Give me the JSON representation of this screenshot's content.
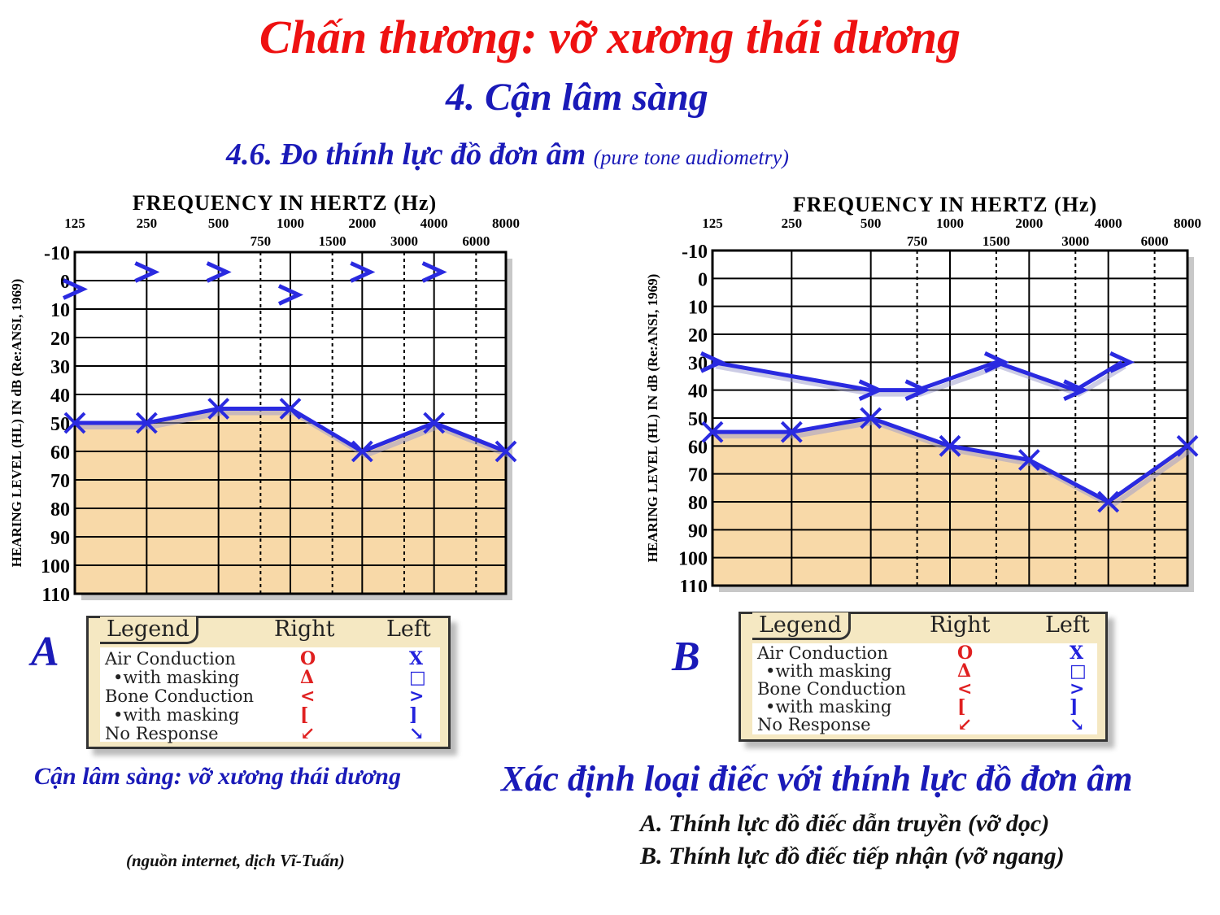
{
  "title": "Chấn thương: vỡ xương thái dương",
  "subtitle": "4. Cận lâm sàng",
  "section": "4.6. Đo thính lực đồ đơn âm",
  "section_note": "(pure tone audiometry)",
  "panel_a_letter": "A",
  "panel_b_letter": "B",
  "legend": {
    "title": "Legend",
    "right_header": "Right",
    "left_header": "Left",
    "rows": [
      "Air Conduction",
      "•with masking",
      "Bone Conduction",
      "•with masking",
      "No Response"
    ],
    "right_symbols": [
      "O",
      "Δ",
      "<",
      "[",
      "↙"
    ],
    "left_symbols": [
      "X",
      "□",
      ">",
      "]",
      "↘"
    ],
    "right_color": "#e02020",
    "left_color": "#2222dd"
  },
  "caption_left": "Cận lâm sàng: vỡ xương thái dương",
  "caption_right": "Xác định loại điếc với thính lực đồ đơn âm",
  "line_a": "A. Thính lực đồ điếc dẫn truyền (vỡ dọc)",
  "line_b": "B. Thính lực đồ điếc tiếp nhận (vỡ ngang)",
  "source": "(nguồn internet, dịch Vĩ-Tuấn)",
  "colors": {
    "fill": "#f8d9a8",
    "line": "#2a2ae0",
    "title_red": "#ee1111",
    "text_blue": "#1a1ab8"
  },
  "chart_data": [
    {
      "type": "line",
      "panel": "A",
      "title": "FREQUENCY IN HERTZ (Hz)",
      "ylabel": "HEARING LEVEL (HL) IN dB (Re:ANSI, 1969)",
      "x_ticks_major": [
        "125",
        "250",
        "500",
        "1000",
        "2000",
        "4000",
        "8000"
      ],
      "x_ticks_minor": [
        "750",
        "1500",
        "3000",
        "6000"
      ],
      "y_ticks": [
        "-10",
        "0",
        "10",
        "20",
        "30",
        "40",
        "50",
        "60",
        "70",
        "80",
        "90",
        "100",
        "110"
      ],
      "ylim": [
        -10,
        110
      ],
      "y_inverted": true,
      "grid": true,
      "series": [
        {
          "symbol": "X",
          "x": [
            125,
            250,
            500,
            1000,
            2000,
            4000,
            8000
          ],
          "values": [
            50,
            50,
            45,
            45,
            60,
            50,
            60
          ]
        },
        {
          "symbol": ">",
          "x": [
            125,
            250,
            500,
            1000,
            2000,
            4000
          ],
          "values": [
            3,
            -3,
            -3,
            5,
            -3,
            -3
          ]
        }
      ]
    },
    {
      "type": "line",
      "panel": "B",
      "title": "FREQUENCY IN HERTZ (Hz)",
      "ylabel": "HEARING LEVEL (HL) IN dB (Re:ANSI, 1969)",
      "x_ticks_major": [
        "125",
        "250",
        "500",
        "1000",
        "2000",
        "4000",
        "8000"
      ],
      "x_ticks_minor": [
        "750",
        "1500",
        "3000",
        "6000"
      ],
      "y_ticks": [
        "-10",
        "0",
        "10",
        "20",
        "30",
        "40",
        "50",
        "60",
        "70",
        "80",
        "90",
        "100",
        "110"
      ],
      "ylim": [
        -10,
        110
      ],
      "y_inverted": true,
      "grid": true,
      "series": [
        {
          "symbol": "X",
          "x": [
            125,
            250,
            500,
            1000,
            2000,
            4000,
            8000
          ],
          "values": [
            55,
            55,
            50,
            60,
            65,
            80,
            60
          ]
        },
        {
          "symbol": ">",
          "x": [
            125,
            500,
            750,
            1500,
            3000,
            4500
          ],
          "values": [
            30,
            40,
            40,
            30,
            40,
            30
          ]
        }
      ]
    }
  ]
}
